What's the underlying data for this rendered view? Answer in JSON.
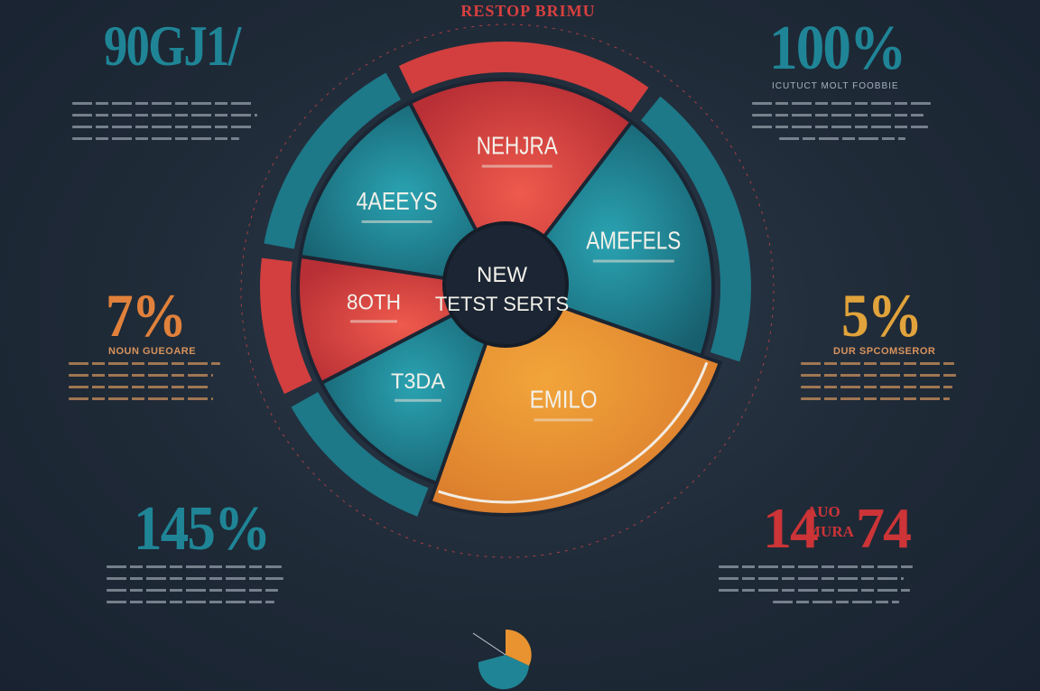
{
  "banner": "RESTOP BRIMU",
  "stats": {
    "top_left": "90GJ1/",
    "top_right": "100%",
    "top_right_sub": "ICUTUCT MOLT FOOBBIE",
    "mid_left": "7%",
    "mid_left_caption": "NOUN GUEOARE",
    "mid_right": "5%",
    "mid_right_caption": "DUR SPCOMSEROR",
    "bottom_left": "145%",
    "bottom_right_a": "14",
    "bottom_right_sub_1": "AUO",
    "bottom_right_sub_2": "MURA",
    "bottom_right_b": "74"
  },
  "chart_data": {
    "type": "pie",
    "center_label": [
      "NEW",
      "TETST SERTS"
    ],
    "slices": [
      {
        "label": "NEHJRA",
        "value": 18,
        "color": "#d7413f"
      },
      {
        "label": "AMEFELS",
        "value": 20,
        "color": "#1f7d8d"
      },
      {
        "label": "EMILO",
        "value": 25,
        "color": "#e8932f"
      },
      {
        "label": "T3DA",
        "value": 12,
        "color": "#1f7d8d"
      },
      {
        "label": "8OTH",
        "value": 10,
        "color": "#d7413f"
      },
      {
        "label": "4AEEYS",
        "value": 15,
        "color": "#1f7d8d"
      }
    ],
    "legend": "none",
    "grid": false
  },
  "colors": {
    "teal": "#1f8596",
    "red": "#d7413f",
    "orange": "#e8932f",
    "background": "#1f2a37"
  }
}
